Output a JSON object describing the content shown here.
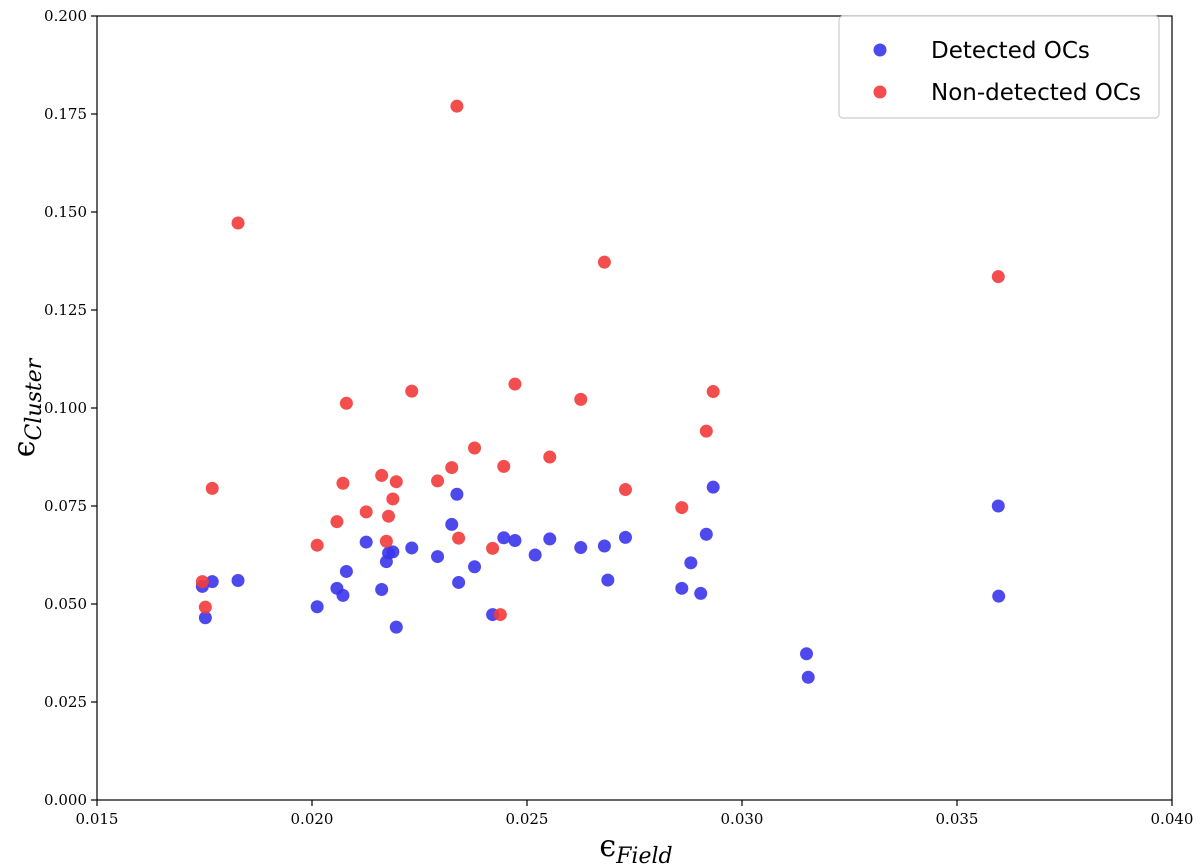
{
  "chart_data": {
    "type": "scatter",
    "title": "",
    "xlabel": "ε_Field",
    "ylabel": "ε_Cluster",
    "xlim": [
      0.015,
      0.04
    ],
    "ylim": [
      0.0,
      0.2
    ],
    "x_ticks": [
      "0.015",
      "0.020",
      "0.025",
      "0.030",
      "0.035",
      "0.040"
    ],
    "y_ticks": [
      "0.000",
      "0.025",
      "0.050",
      "0.075",
      "0.100",
      "0.125",
      "0.150",
      "0.175",
      "0.200"
    ],
    "grid": false,
    "legend_position": "top-right",
    "series": [
      {
        "name": "Detected OCs",
        "color": "#3b35eb",
        "points": [
          [
            0.01745,
            0.0545
          ],
          [
            0.01752,
            0.0465
          ],
          [
            0.01768,
            0.0557
          ],
          [
            0.01828,
            0.056
          ],
          [
            0.02012,
            0.0493
          ],
          [
            0.02058,
            0.054
          ],
          [
            0.02072,
            0.0522
          ],
          [
            0.0208,
            0.0583
          ],
          [
            0.02126,
            0.0658
          ],
          [
            0.02162,
            0.0537
          ],
          [
            0.02173,
            0.0608
          ],
          [
            0.02178,
            0.063
          ],
          [
            0.02188,
            0.0633
          ],
          [
            0.02196,
            0.0441
          ],
          [
            0.02232,
            0.0643
          ],
          [
            0.02292,
            0.0621
          ],
          [
            0.02325,
            0.0703
          ],
          [
            0.02337,
            0.078
          ],
          [
            0.02341,
            0.0555
          ],
          [
            0.02378,
            0.0595
          ],
          [
            0.0242,
            0.0473
          ],
          [
            0.02446,
            0.0669
          ],
          [
            0.02472,
            0.0662
          ],
          [
            0.02519,
            0.0625
          ],
          [
            0.02553,
            0.0666
          ],
          [
            0.02625,
            0.0644
          ],
          [
            0.0268,
            0.0648
          ],
          [
            0.02688,
            0.0561
          ],
          [
            0.02729,
            0.067
          ],
          [
            0.0286,
            0.054
          ],
          [
            0.02881,
            0.0605
          ],
          [
            0.02904,
            0.0527
          ],
          [
            0.02917,
            0.0678
          ],
          [
            0.02933,
            0.0798
          ],
          [
            0.0315,
            0.0373
          ],
          [
            0.03154,
            0.0313
          ],
          [
            0.03596,
            0.075
          ],
          [
            0.03597,
            0.052
          ]
        ]
      },
      {
        "name": "Non-detected OCs",
        "color": "#f23a3a",
        "points": [
          [
            0.01745,
            0.0557
          ],
          [
            0.01752,
            0.0492
          ],
          [
            0.01768,
            0.0795
          ],
          [
            0.01828,
            0.1472
          ],
          [
            0.02012,
            0.065
          ],
          [
            0.02058,
            0.071
          ],
          [
            0.02072,
            0.0808
          ],
          [
            0.0208,
            0.1012
          ],
          [
            0.02126,
            0.0735
          ],
          [
            0.02162,
            0.0828
          ],
          [
            0.02173,
            0.066
          ],
          [
            0.02178,
            0.0724
          ],
          [
            0.02188,
            0.0768
          ],
          [
            0.02196,
            0.0812
          ],
          [
            0.02232,
            0.1043
          ],
          [
            0.02292,
            0.0814
          ],
          [
            0.02325,
            0.0848
          ],
          [
            0.02337,
            0.177
          ],
          [
            0.02341,
            0.0668
          ],
          [
            0.02378,
            0.0898
          ],
          [
            0.0242,
            0.0642
          ],
          [
            0.02438,
            0.0473
          ],
          [
            0.02446,
            0.0851
          ],
          [
            0.02472,
            0.1061
          ],
          [
            0.02553,
            0.0875
          ],
          [
            0.02625,
            0.1022
          ],
          [
            0.0268,
            0.1372
          ],
          [
            0.02729,
            0.0792
          ],
          [
            0.0286,
            0.0746
          ],
          [
            0.02917,
            0.0941
          ],
          [
            0.02933,
            0.1042
          ],
          [
            0.03596,
            0.1335
          ]
        ]
      }
    ]
  }
}
